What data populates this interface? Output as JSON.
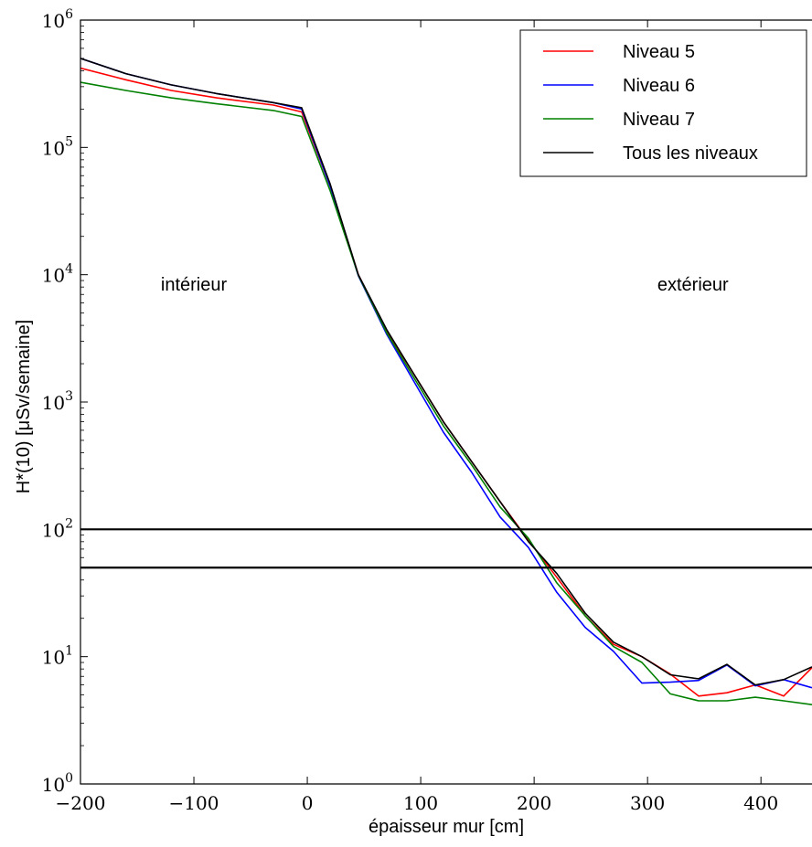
{
  "chart_data": {
    "type": "line",
    "xlabel": "épaisseur mur [cm]",
    "ylabel": "H*(10) [μSv/semaine]",
    "xlim": [
      -200,
      445
    ],
    "ylim": [
      1,
      1000000
    ],
    "yscale": "log",
    "grid": false,
    "legend_position": "top-right",
    "x_ticks": [
      {
        "value": -200,
        "label": "−200"
      },
      {
        "value": -100,
        "label": "−100"
      },
      {
        "value": 0,
        "label": "0"
      },
      {
        "value": 100,
        "label": "100"
      },
      {
        "value": 200,
        "label": "200"
      },
      {
        "value": 300,
        "label": "300"
      },
      {
        "value": 400,
        "label": "400"
      }
    ],
    "y_ticks": [
      {
        "value": 1,
        "base": "10",
        "exp": "0"
      },
      {
        "value": 10,
        "base": "10",
        "exp": "1"
      },
      {
        "value": 100,
        "base": "10",
        "exp": "2"
      },
      {
        "value": 1000,
        "base": "10",
        "exp": "3"
      },
      {
        "value": 10000,
        "base": "10",
        "exp": "4"
      },
      {
        "value": 100000,
        "base": "10",
        "exp": "5"
      },
      {
        "value": 1000000,
        "base": "10",
        "exp": "6"
      }
    ],
    "series": [
      {
        "name": "Niveau 5",
        "color": "#ff0000",
        "points": [
          [
            -200,
            420000
          ],
          [
            -160,
            340000
          ],
          [
            -120,
            280000
          ],
          [
            -80,
            245000
          ],
          [
            -30,
            215000
          ],
          [
            -5,
            190000
          ],
          [
            20,
            50000
          ],
          [
            45,
            10000
          ],
          [
            70,
            3600
          ],
          [
            95,
            1600
          ],
          [
            120,
            700
          ],
          [
            145,
            340
          ],
          [
            170,
            165
          ],
          [
            195,
            82
          ],
          [
            220,
            42
          ],
          [
            245,
            21
          ],
          [
            270,
            12.5
          ],
          [
            295,
            10
          ],
          [
            320,
            7.3
          ],
          [
            345,
            4.9
          ],
          [
            370,
            5.2
          ],
          [
            395,
            6
          ],
          [
            420,
            4.9
          ],
          [
            445,
            8.2
          ]
        ]
      },
      {
        "name": "Niveau 6",
        "color": "#0000ff",
        "points": [
          [
            -200,
            500000
          ],
          [
            -160,
            380000
          ],
          [
            -120,
            310000
          ],
          [
            -80,
            265000
          ],
          [
            -30,
            225000
          ],
          [
            -5,
            200000
          ],
          [
            20,
            50000
          ],
          [
            45,
            9800
          ],
          [
            70,
            3400
          ],
          [
            95,
            1400
          ],
          [
            120,
            580
          ],
          [
            145,
            280
          ],
          [
            170,
            125
          ],
          [
            195,
            72
          ],
          [
            220,
            32
          ],
          [
            245,
            17
          ],
          [
            270,
            11
          ],
          [
            295,
            6.2
          ],
          [
            320,
            6.3
          ],
          [
            345,
            6.5
          ],
          [
            370,
            8.6
          ],
          [
            395,
            5.9
          ],
          [
            420,
            6.6
          ],
          [
            445,
            5.7
          ]
        ]
      },
      {
        "name": "Niveau 7",
        "color": "#008000",
        "points": [
          [
            -200,
            325000
          ],
          [
            -160,
            280000
          ],
          [
            -120,
            245000
          ],
          [
            -80,
            220000
          ],
          [
            -30,
            195000
          ],
          [
            -5,
            175000
          ],
          [
            20,
            46000
          ],
          [
            45,
            9900
          ],
          [
            70,
            3500
          ],
          [
            95,
            1500
          ],
          [
            120,
            650
          ],
          [
            145,
            320
          ],
          [
            170,
            150
          ],
          [
            195,
            85
          ],
          [
            220,
            38
          ],
          [
            245,
            21
          ],
          [
            270,
            12
          ],
          [
            295,
            9
          ],
          [
            320,
            5.1
          ],
          [
            345,
            4.5
          ],
          [
            370,
            4.5
          ],
          [
            395,
            4.8
          ],
          [
            420,
            4.5
          ],
          [
            445,
            4.2
          ]
        ]
      },
      {
        "name": "Tous les niveaux",
        "color": "#000000",
        "points": [
          [
            -200,
            500000
          ],
          [
            -160,
            380000
          ],
          [
            -120,
            310000
          ],
          [
            -80,
            265000
          ],
          [
            -30,
            225000
          ],
          [
            -5,
            205000
          ],
          [
            20,
            52000
          ],
          [
            45,
            10000
          ],
          [
            70,
            3700
          ],
          [
            95,
            1600
          ],
          [
            120,
            700
          ],
          [
            145,
            340
          ],
          [
            170,
            165
          ],
          [
            195,
            80
          ],
          [
            220,
            45
          ],
          [
            245,
            22
          ],
          [
            270,
            13
          ],
          [
            295,
            10
          ],
          [
            320,
            7.2
          ],
          [
            345,
            6.7
          ],
          [
            370,
            8.7
          ],
          [
            395,
            6
          ],
          [
            420,
            6.6
          ],
          [
            445,
            8.3
          ]
        ]
      }
    ],
    "reference_lines": [
      {
        "y": 100,
        "color": "#000000"
      },
      {
        "y": 50,
        "color": "#000000"
      }
    ],
    "annotations": [
      {
        "text": "intérieur",
        "x": -100,
        "y": 7500
      },
      {
        "text": "extérieur",
        "x": 340,
        "y": 7500
      }
    ]
  }
}
